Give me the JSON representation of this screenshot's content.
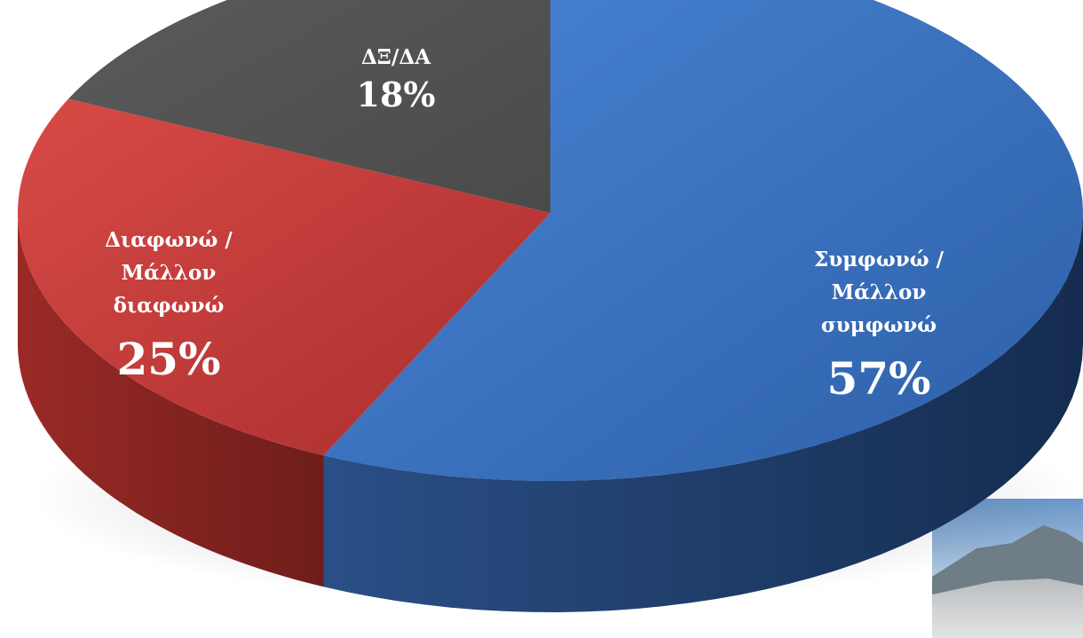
{
  "chart_data": {
    "type": "pie",
    "title": "",
    "slices": [
      {
        "name_lines": [
          "Συμφωνώ /",
          "Μάλλον",
          "συμφωνώ"
        ],
        "value": 57,
        "value_label": "57%",
        "color": "#3a6fc0",
        "side_color": "#1d3d6c"
      },
      {
        "name_lines": [
          "Διαφωνώ /",
          "Μάλλον",
          "διαφωνώ"
        ],
        "value": 25,
        "value_label": "25%",
        "color": "#c73b3b",
        "side_color": "#7a2020"
      },
      {
        "name_lines": [
          "ΔΞ/ΔΑ"
        ],
        "value": 18,
        "value_label": "18%",
        "color": "#545454",
        "side_color": "#303030"
      }
    ]
  }
}
